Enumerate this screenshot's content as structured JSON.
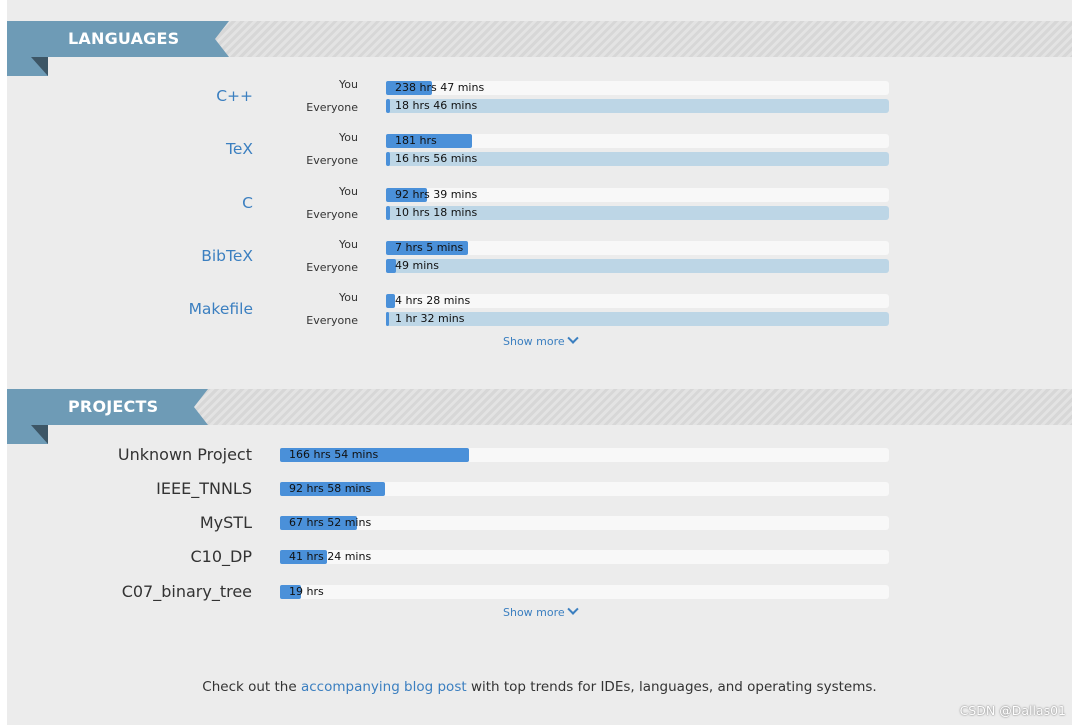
{
  "languages": {
    "title": "LANGUAGES",
    "you_label": "You",
    "everyone_label": "Everyone",
    "items": [
      {
        "name": "C++",
        "you": "238 hrs 47 mins",
        "you_fill": 0.092,
        "everyone": "18 hrs 46 mins",
        "everyone_fill": 0.008
      },
      {
        "name": "TeX",
        "you": "181 hrs",
        "you_fill": 0.17,
        "everyone": "16 hrs 56 mins",
        "everyone_fill": 0.008
      },
      {
        "name": "C",
        "you": "92 hrs 39 mins",
        "you_fill": 0.082,
        "everyone": "10 hrs 18 mins",
        "everyone_fill": 0.008
      },
      {
        "name": "BibTeX",
        "you": "7 hrs 5 mins",
        "you_fill": 0.163,
        "everyone": "49 mins",
        "everyone_fill": 0.02
      },
      {
        "name": "Makefile",
        "you": "4 hrs 28 mins",
        "you_fill": 0.018,
        "everyone": "1 hr 32 mins",
        "everyone_fill": 0.006
      }
    ],
    "show_more": "Show more"
  },
  "projects": {
    "title": "PROJECTS",
    "items": [
      {
        "name": "Unknown Project",
        "time": "166 hrs 54 mins",
        "fill": 0.31
      },
      {
        "name": "IEEE_TNNLS",
        "time": "92 hrs 58 mins",
        "fill": 0.172
      },
      {
        "name": "MySTL",
        "time": "67 hrs 52 mins",
        "fill": 0.126
      },
      {
        "name": "C10_DP",
        "time": "41 hrs 24 mins",
        "fill": 0.077
      },
      {
        "name": "C07_binary_tree",
        "time": "19 hrs",
        "fill": 0.035
      }
    ],
    "show_more": "Show more"
  },
  "footer": {
    "prefix": "Check out the ",
    "link": "accompanying blog post",
    "suffix": " with top trends for IDEs, languages, and operating systems."
  },
  "watermark": "CSDN @Dallas01",
  "colors": {
    "ribbon": "#6e9bb6",
    "accent_bar": "#4a90d9",
    "everyone_bar": "#bdd6e6",
    "link": "#3b7fc0"
  }
}
